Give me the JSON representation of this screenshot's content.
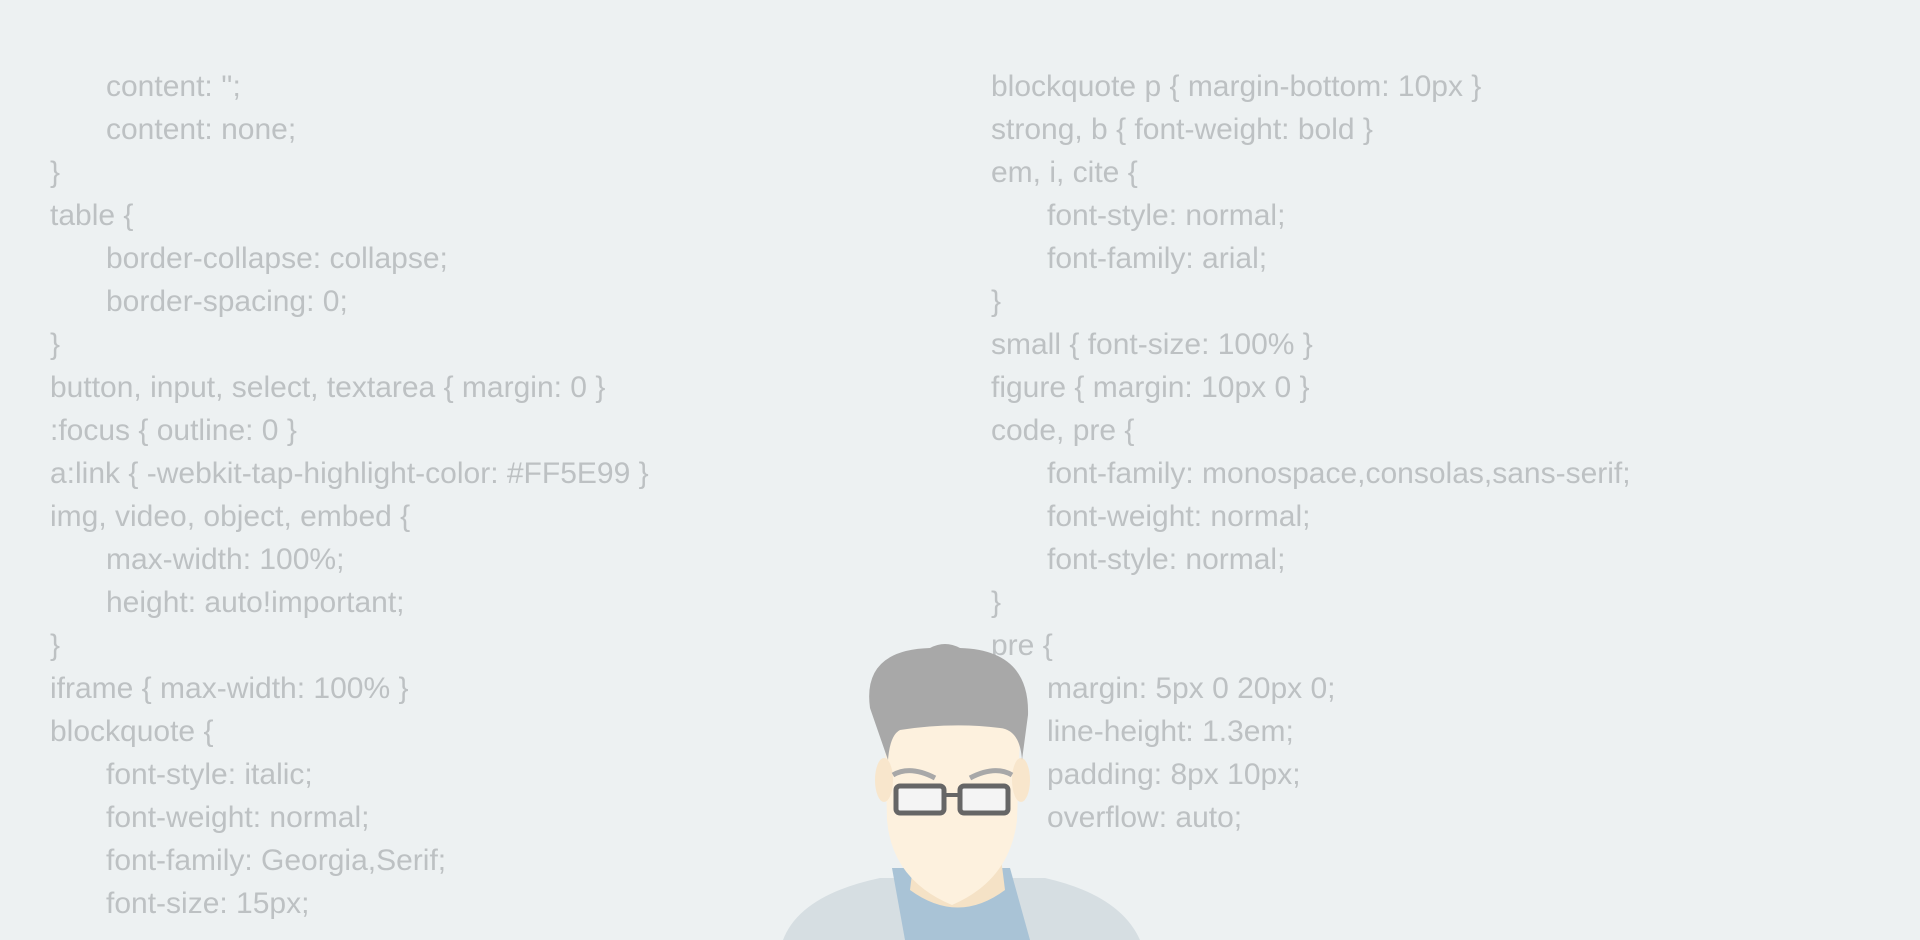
{
  "left_column": {
    "lines": [
      {
        "text": "content: '';",
        "indent": true
      },
      {
        "text": "content: none;",
        "indent": true
      },
      {
        "text": "}",
        "indent": false
      },
      {
        "text": "table {",
        "indent": false
      },
      {
        "text": "border-collapse: collapse;",
        "indent": true
      },
      {
        "text": "border-spacing: 0;",
        "indent": true
      },
      {
        "text": "}",
        "indent": false
      },
      {
        "text": "button, input, select, textarea { margin: 0 }",
        "indent": false
      },
      {
        "text": ":focus { outline: 0 }",
        "indent": false
      },
      {
        "text": "a:link { -webkit-tap-highlight-color: #FF5E99 }",
        "indent": false
      },
      {
        "text": "img, video, object, embed {",
        "indent": false
      },
      {
        "text": "max-width: 100%;",
        "indent": true
      },
      {
        "text": "height: auto!important;",
        "indent": true
      },
      {
        "text": "}",
        "indent": false
      },
      {
        "text": "iframe { max-width: 100% }",
        "indent": false
      },
      {
        "text": "blockquote {",
        "indent": false
      },
      {
        "text": "font-style: italic;",
        "indent": true
      },
      {
        "text": "font-weight: normal;",
        "indent": true
      },
      {
        "text": "font-family: Georgia,Serif;",
        "indent": true
      },
      {
        "text": "font-size: 15px;",
        "indent": true
      }
    ]
  },
  "right_column": {
    "lines": [
      {
        "text": "blockquote p { margin-bottom: 10px }",
        "indent": false
      },
      {
        "text": "strong, b { font-weight: bold }",
        "indent": false
      },
      {
        "text": "em, i, cite {",
        "indent": false
      },
      {
        "text": "font-style: normal;",
        "indent": true
      },
      {
        "text": "font-family: arial;",
        "indent": true
      },
      {
        "text": "}",
        "indent": false
      },
      {
        "text": "small { font-size: 100% }",
        "indent": false
      },
      {
        "text": "figure { margin: 10px 0 }",
        "indent": false
      },
      {
        "text": "code, pre {",
        "indent": false
      },
      {
        "text": "font-family: monospace,consolas,sans-serif;",
        "indent": true
      },
      {
        "text": "font-weight: normal;",
        "indent": true
      },
      {
        "text": "font-style: normal;",
        "indent": true
      },
      {
        "text": "}",
        "indent": false
      },
      {
        "text": "pre {",
        "indent": false
      },
      {
        "text": "margin: 5px 0 20px 0;",
        "indent": true
      },
      {
        "text": "line-height: 1.3em;",
        "indent": true
      },
      {
        "text": "padding: 8px 10px;",
        "indent": true
      },
      {
        "text": "overflow: auto;",
        "indent": true
      }
    ]
  }
}
